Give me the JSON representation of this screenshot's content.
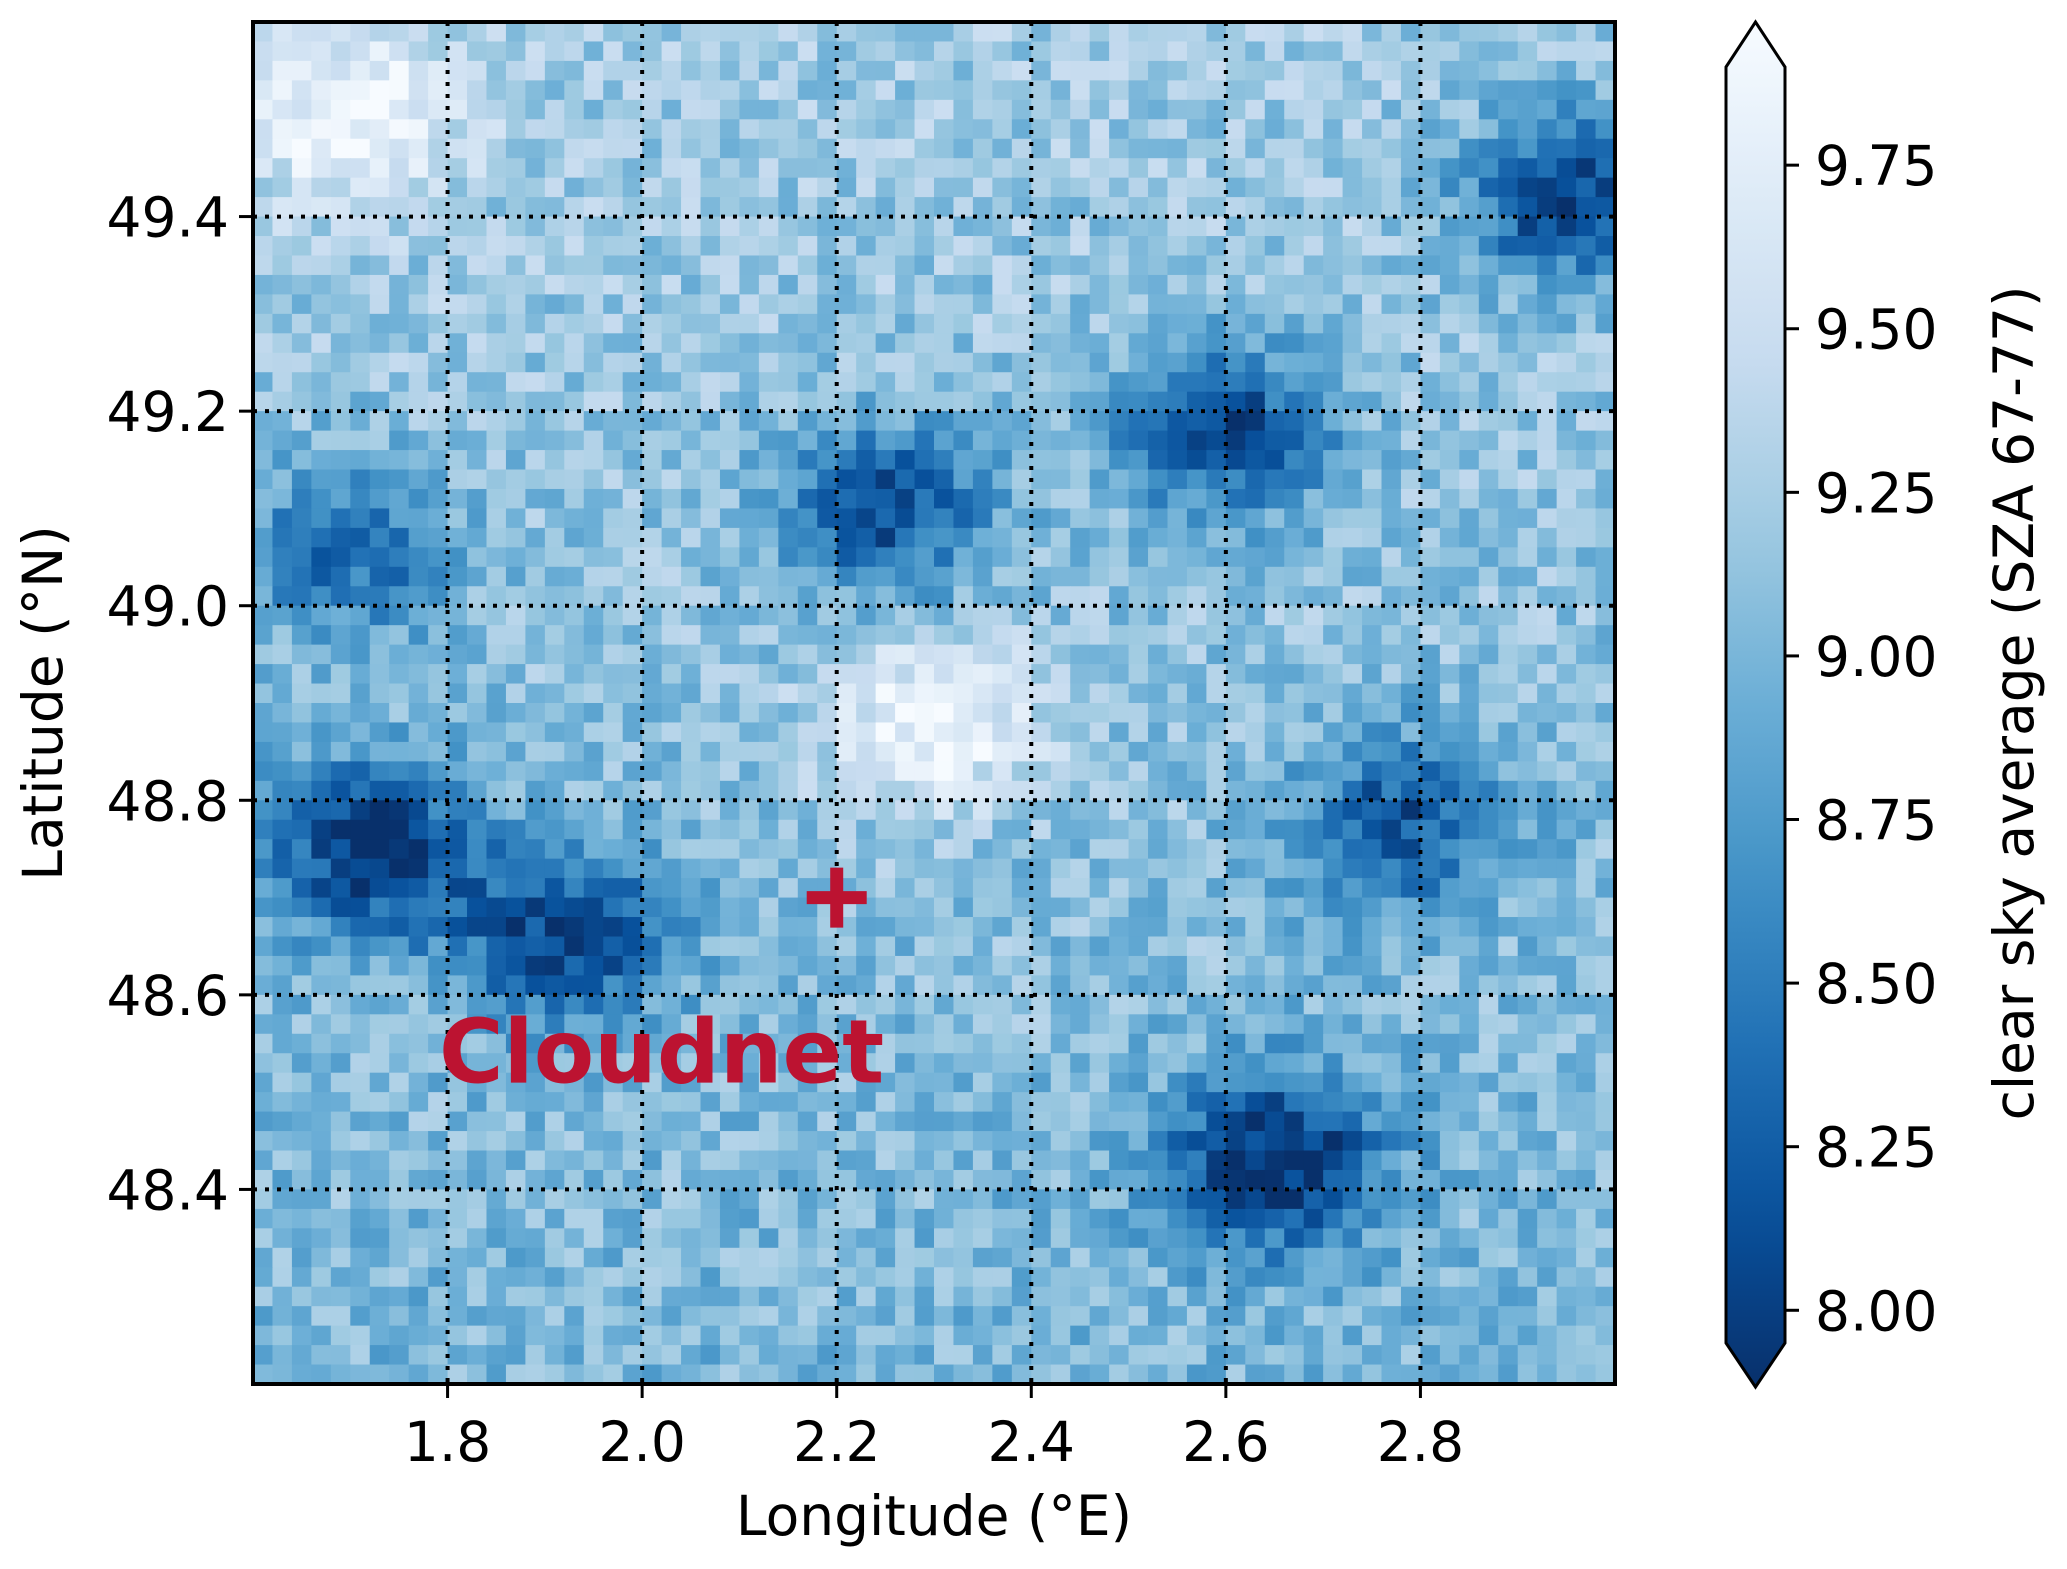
{
  "chart_data": {
    "type": "heatmap",
    "title": "",
    "xlabel": "Longitude (°E)",
    "ylabel": "Latitude (°N)",
    "xlim": [
      1.6,
      3.0
    ],
    "ylim": [
      48.2,
      49.6
    ],
    "xticks": [
      "1.8",
      "2.0",
      "2.2",
      "2.4",
      "2.6",
      "2.8"
    ],
    "yticks": [
      "48.4",
      "48.6",
      "48.8",
      "49.0",
      "49.2",
      "49.4"
    ],
    "grid": "dotted",
    "colormap": "Blues_r",
    "colorbar": {
      "label": "clear sky average (SZA 67-77)",
      "range": [
        7.95,
        9.9
      ],
      "ticks": [
        "8.00",
        "8.25",
        "8.50",
        "8.75",
        "9.00",
        "9.25",
        "9.50",
        "9.75"
      ],
      "extend": "both"
    },
    "grid_resolution_deg": 0.02,
    "features": [
      {
        "name": "bright-region-center",
        "lon": 2.3,
        "lat": 48.88,
        "value": 9.85
      },
      {
        "name": "bright-corner",
        "lon": 1.7,
        "lat": 49.5,
        "value": 9.8
      },
      {
        "name": "dark-southeast",
        "lon": 2.65,
        "lat": 48.43,
        "value": 7.95
      },
      {
        "name": "dark-west",
        "lon": 1.72,
        "lat": 48.75,
        "value": 8.0
      },
      {
        "name": "dark-west-south",
        "lon": 1.92,
        "lat": 48.66,
        "value": 8.1
      },
      {
        "name": "dark-northeast",
        "lon": 2.95,
        "lat": 49.42,
        "value": 8.0
      },
      {
        "name": "dark-north-center",
        "lon": 2.6,
        "lat": 49.18,
        "value": 8.1
      },
      {
        "name": "dark-center",
        "lon": 2.25,
        "lat": 49.1,
        "value": 8.15
      },
      {
        "name": "dark-east-mid",
        "lon": 2.78,
        "lat": 48.78,
        "value": 8.25
      },
      {
        "name": "dark-west-north",
        "lon": 1.7,
        "lat": 49.06,
        "value": 8.35
      }
    ],
    "annotations": [
      {
        "text": "Cloudnet",
        "marker": "+",
        "lon": 2.2,
        "lat": 48.7,
        "color": "#bc1331"
      }
    ]
  }
}
